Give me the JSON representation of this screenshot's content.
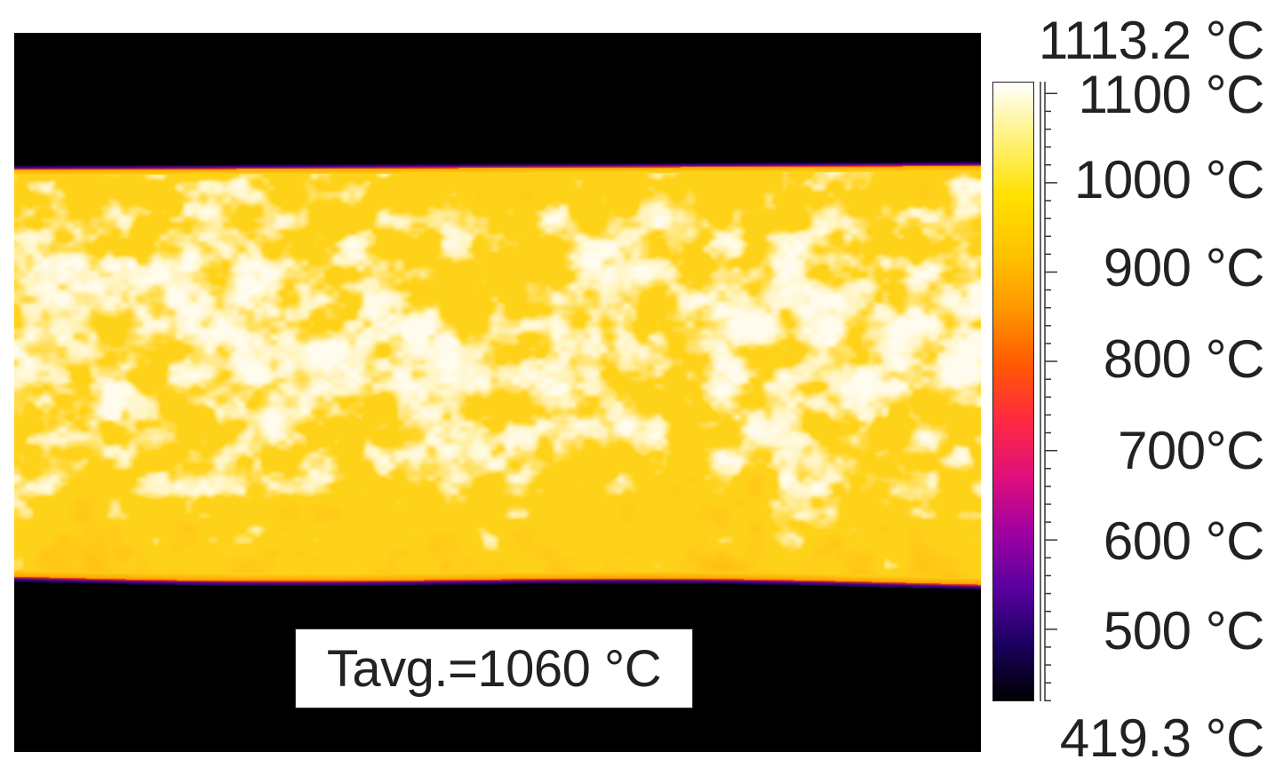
{
  "annotation": {
    "average_label": "Tavg.=1060 °C"
  },
  "colorbar": {
    "max_label": "1113.2 °C",
    "min_label": "419.3 °C",
    "min": 419.3,
    "max": 1113.2,
    "tick_labels": [
      "1100 °C",
      "1000 °C",
      "900 °C",
      "800 °C",
      "700°C",
      "600 °C",
      "500 °C"
    ],
    "tick_values": [
      1100,
      1000,
      900,
      800,
      700,
      600,
      500
    ],
    "colors": [
      "#000000",
      "#1a0060",
      "#5a00a0",
      "#a000a0",
      "#e0107a",
      "#ff2a40",
      "#ff5a00",
      "#ff9900",
      "#ffc400",
      "#ffe100",
      "#fff27a",
      "#ffffff"
    ]
  },
  "image": {
    "subject": "hot metal strip thermal image",
    "background_color": "#000000",
    "strip_base_color": "#ffd21a",
    "strip_edge_color": "#3a00a0",
    "hotspot_color": "#fffbe8"
  }
}
